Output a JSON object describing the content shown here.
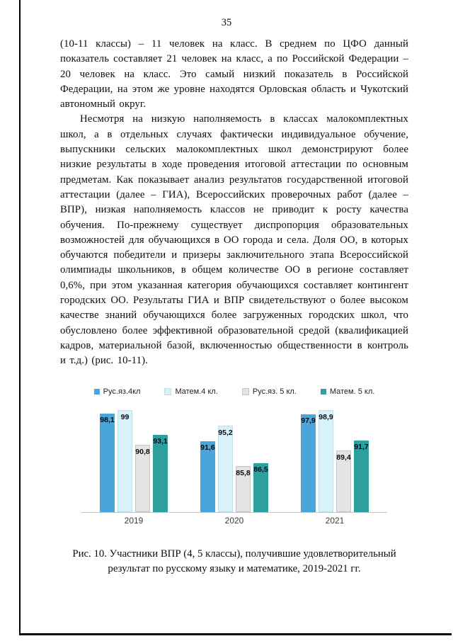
{
  "page": {
    "number": "35"
  },
  "paragraphs": [
    "(10-11 классы) – 11 человек на класс. В среднем по ЦФО данный показатель составляет 21 человек на класс, а по Российской Федерации – 20 человек на класс. Это самый низкий показатель в Российской Федерации, на этом же уровне находятся Орловская область и Чукотский автономный округ.",
    "Несмотря на низкую наполняемость в классах малокомплектных школ, а в отдельных случаях фактически индивидуальное обучение, выпускники сельских малокомплектных школ демонстрируют более низкие результаты в ходе проведения итоговой аттестации по основным предметам. Как показывает анализ результатов государственной итоговой аттестации (далее – ГИА), Всероссийских проверочных работ (далее – ВПР), низкая наполняемость классов не приводит к росту качества обучения. По-прежнему существует диспропорция образовательных возможностей для обучающихся в ОО города и села. Доля ОО, в которых обучаются победители и призеры заключительного этапа Всероссийской олимпиады школьников, в общем количестве ОО в регионе составляет 0,6%, при этом указанная категория обучающихся составляет контингент городских ОО. Результаты ГИА и ВПР свидетельствуют о более высоком качестве знаний обучающихся более загруженных городских школ, что обусловлено более эффективной образовательной средой (квалификацией кадров, материальной базой, включенностью общественности в контроль и т.д.) (рис. 10-11)."
  ],
  "chart_data": {
    "type": "bar",
    "categories": [
      "2019",
      "2020",
      "2021"
    ],
    "series": [
      {
        "name": "Рус.яз.4кл",
        "color": "#4aa5d8",
        "border": "",
        "values": [
          98.1,
          91.6,
          97.9
        ]
      },
      {
        "name": "Матем.4 кл.",
        "color": "#d9f1f8",
        "border": "#bcdfe9",
        "values": [
          99,
          95.2,
          98.9
        ]
      },
      {
        "name": "Рус.яз. 5 кл.",
        "color": "#e4e4e4",
        "border": "#c6c6c6",
        "values": [
          90.8,
          85.8,
          89.4
        ]
      },
      {
        "name": "Матем. 5 кл.",
        "color": "#2da09e",
        "border": "",
        "values": [
          93.1,
          86.5,
          91.7
        ]
      }
    ],
    "title": "",
    "xlabel": "",
    "ylabel": "",
    "ylim": [
      75,
      100
    ],
    "grid": false,
    "legend_position": "top",
    "value_labels_decimal_separator": ","
  },
  "caption": "Рис. 10. Участники ВПР (4, 5 классы), получившие удовлетворительный результат по русскому языку и математике, 2019-2021 гг."
}
